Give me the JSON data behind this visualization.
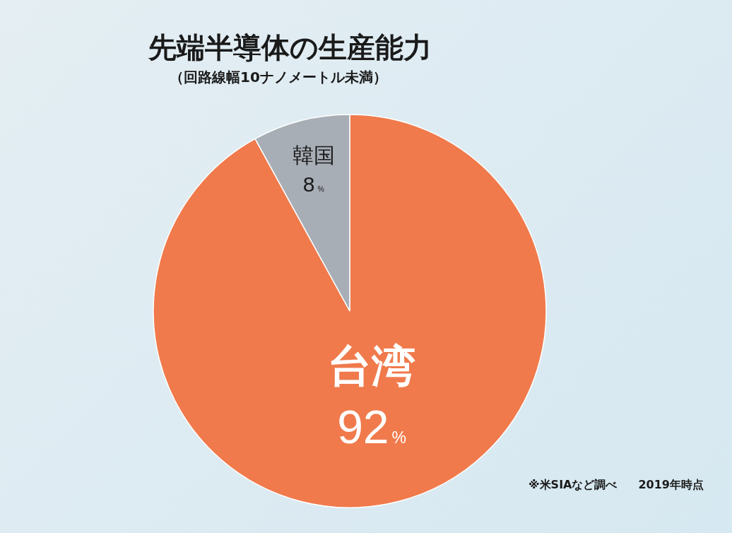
{
  "chart_data": {
    "type": "pie",
    "title": "先端半導体の生産能力",
    "subtitle": "（回路線幅10ナノメートル未満）",
    "categories": [
      "台湾",
      "韓国"
    ],
    "values": [
      92,
      8
    ],
    "value_labels": [
      "92%",
      "8%"
    ],
    "colors": [
      "#f07a4c",
      "#a8aeb6"
    ],
    "legend": false,
    "annotations": [
      "※米SIAなど調べ",
      "2019年時点"
    ]
  }
}
